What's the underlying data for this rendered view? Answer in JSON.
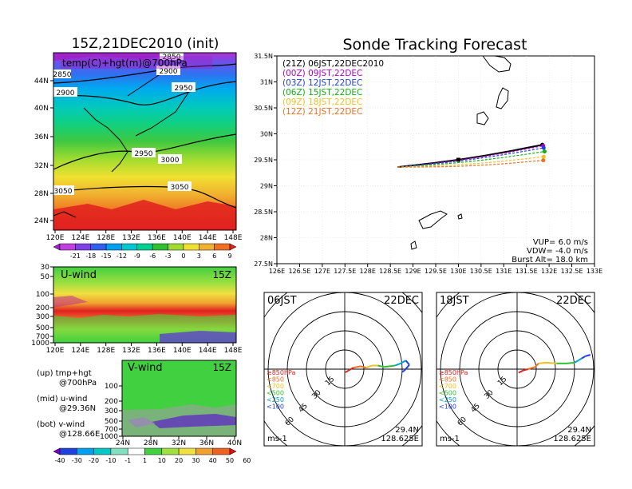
{
  "titles": {
    "left": "15Z,21DEC2010 (init)",
    "right": "Sonde Tracking Forecast"
  },
  "top_map": {
    "label": "temp(C)+hgt(m)@700hPa",
    "lon_ticks": [
      "120E",
      "124E",
      "128E",
      "132E",
      "136E",
      "140E",
      "144E",
      "148E"
    ],
    "lat_ticks": [
      "44N",
      "40N",
      "36N",
      "32N",
      "28N",
      "24N"
    ],
    "contour_labels": [
      "2850",
      "2850",
      "2900",
      "2900",
      "2950",
      "2950",
      "3000",
      "3050",
      "3050"
    ]
  },
  "temp_colorbar": {
    "labels": [
      "-21",
      "-18",
      "-15",
      "-12",
      "-9",
      "-6",
      "-3",
      "0",
      "3",
      "6",
      "9"
    ],
    "colors": [
      "#a020c8",
      "#c040e0",
      "#8040e8",
      "#3060f0",
      "#00a0f0",
      "#00c8d0",
      "#00d090",
      "#30c030",
      "#a0dc30",
      "#f0e030",
      "#f0b030",
      "#f07020",
      "#e02020"
    ]
  },
  "u_panel": {
    "label": "U-wind",
    "time": "15Z",
    "y_ticks": [
      "30",
      "50",
      "100",
      "200",
      "300",
      "500",
      "700",
      "1000"
    ],
    "x_ticks": [
      "120E",
      "124E",
      "128E",
      "132E",
      "136E",
      "140E",
      "144E",
      "148E"
    ]
  },
  "v_panel": {
    "label": "V-wind",
    "time": "15Z",
    "y_ticks": [
      "100",
      "200",
      "300",
      "500",
      "700",
      "1000"
    ],
    "x_ticks": [
      "24N",
      "28N",
      "32N",
      "36N",
      "40N"
    ]
  },
  "legend_text": {
    "up1": "(up) tmp+hgt",
    "up2": "@700hPa",
    "mid1": "(mid) u-wind",
    "mid2": "@29.36N",
    "bot1": "(bot) v-wind",
    "bot2": "@128.66E"
  },
  "wind_colorbar": {
    "labels": [
      "-40",
      "-30",
      "-20",
      "-10",
      "-1",
      "1",
      "10",
      "20",
      "30",
      "40",
      "50",
      "60"
    ],
    "colors": [
      "#8000c0",
      "#2040e0",
      "#00a0f0",
      "#00c8c8",
      "#80e0c0",
      "#ffffff",
      "#40d040",
      "#a0e040",
      "#f0e040",
      "#f0a030",
      "#f06020",
      "#e01010"
    ]
  },
  "track_map": {
    "lat_ticks": [
      "31.5N",
      "31N",
      "30.5N",
      "30N",
      "29.5N",
      "29N",
      "28.5N",
      "28N",
      "27.5N"
    ],
    "lon_ticks": [
      "126E",
      "126.5E",
      "127E",
      "127.5E",
      "128E",
      "128.5E",
      "129E",
      "129.5E",
      "130E",
      "130.5E",
      "131E",
      "131.5E",
      "132E",
      "132.5E",
      "133E"
    ],
    "x_range": [
      126,
      133
    ],
    "y_range": [
      27.5,
      31.5
    ],
    "legend": [
      {
        "label": "(21Z) 06JST,22DEC2010",
        "color": "#000000"
      },
      {
        "label": "(00Z) 09JST,22DEC",
        "color": "#b000d0"
      },
      {
        "label": "(03Z) 12JST,22DEC",
        "color": "#2040e0"
      },
      {
        "label": "(06Z) 15JST,22DEC",
        "color": "#10b010"
      },
      {
        "label": "(09Z) 18JST,22DEC",
        "color": "#f0c020"
      },
      {
        "label": "(12Z) 21JST,22DEC",
        "color": "#f07020"
      }
    ],
    "tracks": [
      {
        "color": "#000000",
        "start": [
          128.66,
          29.36
        ],
        "end": [
          131.85,
          29.79
        ]
      },
      {
        "color": "#b000d0",
        "start": [
          128.66,
          29.36
        ],
        "end": [
          131.87,
          29.77
        ]
      },
      {
        "color": "#2040e0",
        "start": [
          128.66,
          29.36
        ],
        "end": [
          131.88,
          29.73
        ]
      },
      {
        "color": "#10b010",
        "start": [
          128.66,
          29.36
        ],
        "end": [
          131.9,
          29.66
        ]
      },
      {
        "color": "#f0c020",
        "start": [
          128.66,
          29.36
        ],
        "end": [
          131.88,
          29.56
        ]
      },
      {
        "color": "#f07020",
        "start": [
          128.66,
          29.36
        ],
        "end": [
          131.87,
          29.49
        ]
      }
    ],
    "info": {
      "vup": "VUP= 6.0 m/s",
      "vdw": "VDW= -4.0 m/s",
      "burst": "Burst Alt= 18.0 km"
    }
  },
  "hodographs": [
    {
      "time": "06JST",
      "date": "22DEC"
    },
    {
      "time": "18JST",
      "date": "22DEC"
    }
  ],
  "hodo_common": {
    "ring_labels": [
      "15",
      "30",
      "45",
      "60"
    ],
    "units": "ms-1",
    "lat": "29.4N",
    "lon": "128.625E",
    "levels": [
      {
        "label": "≥850hPa",
        "color": "#e02020"
      },
      {
        "label": "<850",
        "color": "#f07020"
      },
      {
        "label": "<700",
        "color": "#f0c020"
      },
      {
        "label": "<500",
        "color": "#30c030"
      },
      {
        "label": "<250",
        "color": "#00a0d0"
      },
      {
        "label": "<100",
        "color": "#2040e0"
      }
    ]
  }
}
